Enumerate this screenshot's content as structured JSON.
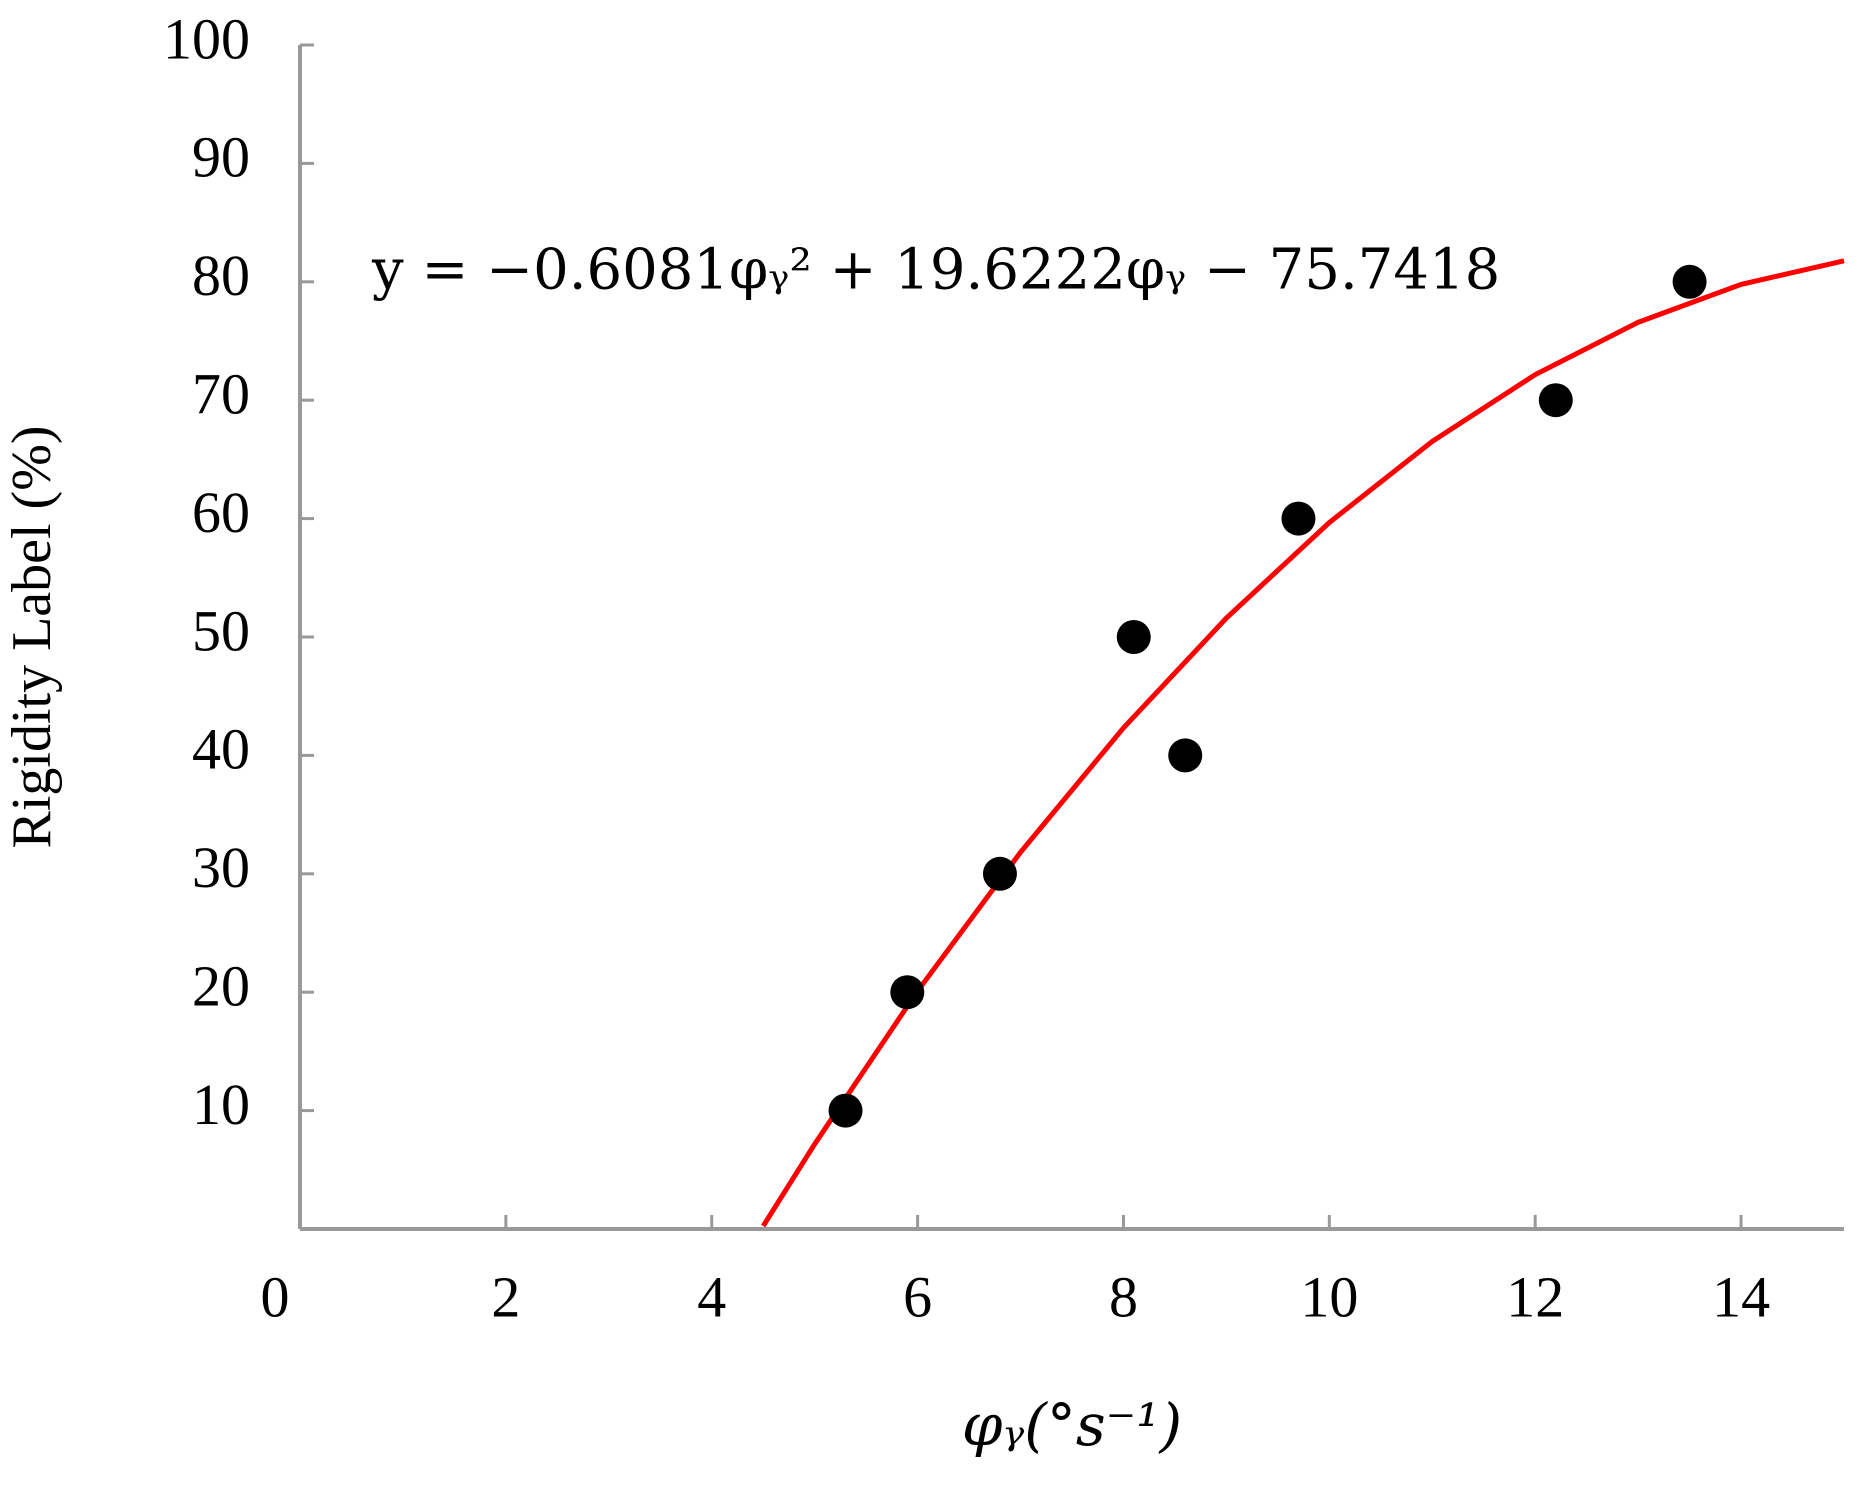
{
  "chart_data": {
    "type": "scatter",
    "x_label": "φᵧ(°s⁻¹)",
    "y_label": "Rigidity Label (%)",
    "annotation": "y = −0.6081φᵧ² + 19.6222φᵧ − 75.7418",
    "xlim": [
      0,
      15
    ],
    "xticks": [
      0,
      2,
      4,
      6,
      8,
      10,
      12,
      14
    ],
    "ylim": [
      0,
      100
    ],
    "yticks": [
      10,
      20,
      30,
      40,
      50,
      60,
      70,
      80,
      90,
      100
    ],
    "series": [
      {
        "color": "#000000",
        "x": [
          5.3,
          5.9,
          6.8,
          8.1,
          8.6,
          9.7,
          12.2,
          13.5
        ],
        "values": [
          10,
          20,
          30,
          50,
          40,
          60,
          70,
          80
        ]
      },
      {
        "type": "line",
        "color": "#ff0000",
        "x": [
          4.5,
          5,
          6,
          7,
          8,
          9,
          10,
          11,
          12,
          13,
          14,
          15
        ],
        "values": [
          0.25,
          7.17,
          20.1,
          31.82,
          42.32,
          51.6,
          59.67,
          66.52,
          72.16,
          76.58,
          79.78,
          81.77
        ]
      }
    ]
  }
}
